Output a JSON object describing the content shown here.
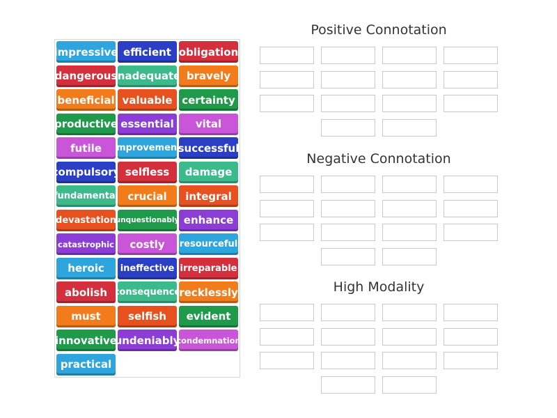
{
  "tiles": [
    {
      "text": "impressive",
      "color": "#2ea6dd"
    },
    {
      "text": "efficient",
      "color": "#2b3fc4"
    },
    {
      "text": "obligation",
      "color": "#d32f3c"
    },
    {
      "text": "dangerous",
      "color": "#d32f3c"
    },
    {
      "text": "inadequate",
      "color": "#3dba8c"
    },
    {
      "text": "bravely",
      "color": "#f27b1c"
    },
    {
      "text": "beneficial",
      "color": "#f27b1c"
    },
    {
      "text": "valuable",
      "color": "#e7501f"
    },
    {
      "text": "certainty",
      "color": "#1f9a4b"
    },
    {
      "text": "productive",
      "color": "#1f9a4b"
    },
    {
      "text": "essential",
      "color": "#8b3dd6"
    },
    {
      "text": "vital",
      "color": "#c955d8"
    },
    {
      "text": "futile",
      "color": "#c955d8"
    },
    {
      "text": "improvement",
      "color": "#2ea6dd"
    },
    {
      "text": "successful",
      "color": "#2b3fc4"
    },
    {
      "text": "compulsory",
      "color": "#2b3fc4"
    },
    {
      "text": "selfless",
      "color": "#d32f3c"
    },
    {
      "text": "damage",
      "color": "#3dba8c"
    },
    {
      "text": "fundamental",
      "color": "#3dba8c"
    },
    {
      "text": "crucial",
      "color": "#f27b1c"
    },
    {
      "text": "integral",
      "color": "#e7501f"
    },
    {
      "text": "devastation",
      "color": "#e7501f"
    },
    {
      "text": "unquestionably",
      "color": "#1f9a4b"
    },
    {
      "text": "enhance",
      "color": "#8b3dd6"
    },
    {
      "text": "catastrophic",
      "color": "#8b3dd6"
    },
    {
      "text": "costly",
      "color": "#c955d8"
    },
    {
      "text": "resourceful",
      "color": "#2ea6dd"
    },
    {
      "text": "heroic",
      "color": "#2ea6dd"
    },
    {
      "text": "ineffective",
      "color": "#2b3fc4"
    },
    {
      "text": "irreparable",
      "color": "#d32f3c"
    },
    {
      "text": "abolish",
      "color": "#d32f3c"
    },
    {
      "text": "consequence",
      "color": "#3dba8c"
    },
    {
      "text": "recklessly",
      "color": "#f27b1c"
    },
    {
      "text": "must",
      "color": "#f27b1c"
    },
    {
      "text": "selfish",
      "color": "#e7501f"
    },
    {
      "text": "evident",
      "color": "#1f9a4b"
    },
    {
      "text": "innovative",
      "color": "#1f9a4b"
    },
    {
      "text": "undeniably",
      "color": "#8b3dd6"
    },
    {
      "text": "condemnation",
      "color": "#c955d8"
    },
    {
      "text": "practical",
      "color": "#2ea6dd"
    }
  ],
  "groups": [
    {
      "title": "Positive Connotation"
    },
    {
      "title": "Negative Connotation"
    },
    {
      "title": "High Modality"
    }
  ]
}
